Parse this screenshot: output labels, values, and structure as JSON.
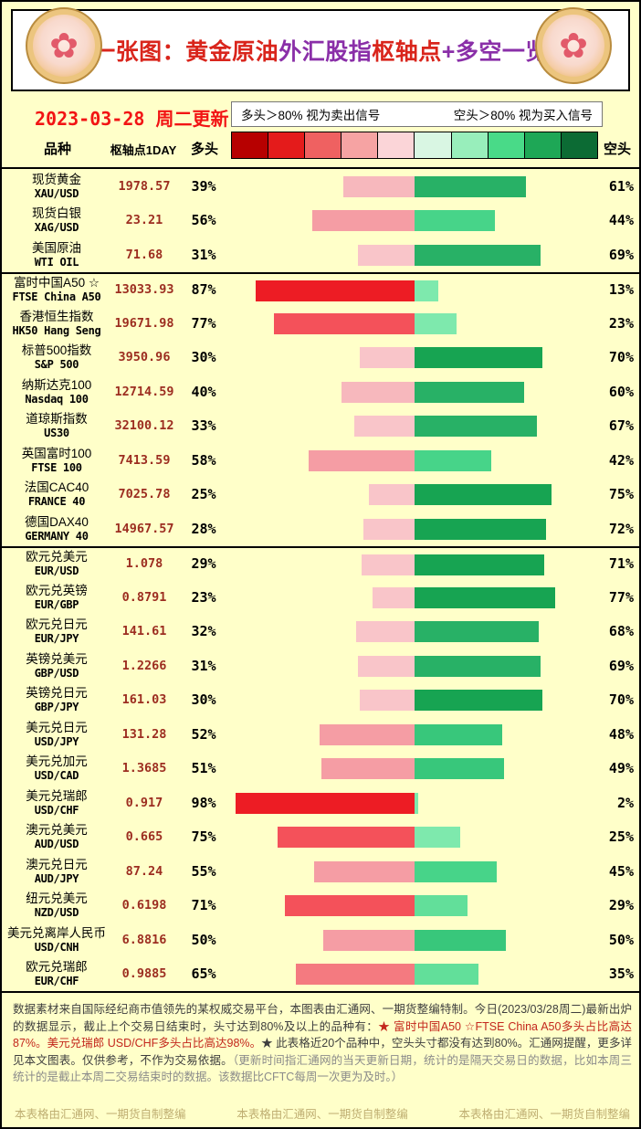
{
  "header": {
    "title_segments": [
      {
        "text": "一张图：黄金原油",
        "color": "#d9251c"
      },
      {
        "text": "外汇股指",
        "color": "#8a2fa8"
      },
      {
        "text": "枢轴点",
        "color": "#d9251c"
      },
      {
        "text": "+多空一览",
        "color": "#8a2fa8"
      }
    ],
    "date_label": "2023-03-28 周二更新",
    "coin_icon_glyph": "✿"
  },
  "legend": {
    "long_signal": "多头＞80% 视为卖出信号",
    "short_signal": "空头＞80% 视为买入信号",
    "scale_colors": [
      "#b70000",
      "#e41b1b",
      "#ef6161",
      "#f6a3a3",
      "#fbd5d8",
      "#d9f6e3",
      "#98eebb",
      "#49da88",
      "#1ea756",
      "#0c6b34"
    ]
  },
  "table": {
    "columns": {
      "variety": "品种",
      "pivot": "枢轴点1DAY",
      "long": "多头",
      "short": "空头"
    },
    "bar_colors": {
      "long": [
        [
          80,
          "#ed1c24"
        ],
        [
          70,
          "#f4515a"
        ],
        [
          60,
          "#f47a80"
        ],
        [
          45,
          "#f59da4"
        ],
        [
          35,
          "#f7b8bd"
        ],
        [
          0,
          "#f9c5c9"
        ]
      ],
      "short": [
        [
          70,
          "#17a452"
        ],
        [
          60,
          "#28b166"
        ],
        [
          48,
          "#38c77b"
        ],
        [
          40,
          "#47d489"
        ],
        [
          28,
          "#62df9a"
        ],
        [
          0,
          "#7ee9ad"
        ]
      ]
    },
    "rows": [
      {
        "name": "现货黄金",
        "symbol": "XAU/USD",
        "pivot": "1978.57",
        "long": 39,
        "short": 61,
        "group_start": false
      },
      {
        "name": "现货白银",
        "symbol": "XAG/USD",
        "pivot": "23.21",
        "long": 56,
        "short": 44,
        "group_start": false
      },
      {
        "name": "美国原油",
        "symbol": "WTI OIL",
        "pivot": "71.68",
        "long": 31,
        "short": 69,
        "group_start": false
      },
      {
        "name": "富时中国A50 ☆",
        "symbol": "FTSE China A50",
        "pivot": "13033.93",
        "long": 87,
        "short": 13,
        "group_start": true
      },
      {
        "name": "香港恒生指数",
        "symbol": "HK50 Hang Seng",
        "pivot": "19671.98",
        "long": 77,
        "short": 23,
        "group_start": false
      },
      {
        "name": "标普500指数",
        "symbol": "S&P 500",
        "pivot": "3950.96",
        "long": 30,
        "short": 70,
        "group_start": false
      },
      {
        "name": "纳斯达克100",
        "symbol": "Nasdaq 100",
        "pivot": "12714.59",
        "long": 40,
        "short": 60,
        "group_start": false
      },
      {
        "name": "道琼斯指数",
        "symbol": "US30",
        "pivot": "32100.12",
        "long": 33,
        "short": 67,
        "group_start": false
      },
      {
        "name": "英国富时100",
        "symbol": "FTSE 100",
        "pivot": "7413.59",
        "long": 58,
        "short": 42,
        "group_start": false
      },
      {
        "name": "法国CAC40",
        "symbol": "FRANCE 40",
        "pivot": "7025.78",
        "long": 25,
        "short": 75,
        "group_start": false
      },
      {
        "name": "德国DAX40",
        "symbol": "GERMANY 40",
        "pivot": "14967.57",
        "long": 28,
        "short": 72,
        "group_start": false
      },
      {
        "name": "欧元兑美元",
        "symbol": "EUR/USD",
        "pivot": "1.078",
        "long": 29,
        "short": 71,
        "group_start": true
      },
      {
        "name": "欧元兑英镑",
        "symbol": "EUR/GBP",
        "pivot": "0.8791",
        "long": 23,
        "short": 77,
        "group_start": false
      },
      {
        "name": "欧元兑日元",
        "symbol": "EUR/JPY",
        "pivot": "141.61",
        "long": 32,
        "short": 68,
        "group_start": false
      },
      {
        "name": "英镑兑美元",
        "symbol": "GBP/USD",
        "pivot": "1.2266",
        "long": 31,
        "short": 69,
        "group_start": false
      },
      {
        "name": "英镑兑日元",
        "symbol": "GBP/JPY",
        "pivot": "161.03",
        "long": 30,
        "short": 70,
        "group_start": false
      },
      {
        "name": "美元兑日元",
        "symbol": "USD/JPY",
        "pivot": "131.28",
        "long": 52,
        "short": 48,
        "group_start": false
      },
      {
        "name": "美元兑加元",
        "symbol": "USD/CAD",
        "pivot": "1.3685",
        "long": 51,
        "short": 49,
        "group_start": false
      },
      {
        "name": "美元兑瑞郎",
        "symbol": "USD/CHF",
        "pivot": "0.917",
        "long": 98,
        "short": 2,
        "group_start": false
      },
      {
        "name": "澳元兑美元",
        "symbol": "AUD/USD",
        "pivot": "0.665",
        "long": 75,
        "short": 25,
        "group_start": false
      },
      {
        "name": "澳元兑日元",
        "symbol": "AUD/JPY",
        "pivot": "87.24",
        "long": 55,
        "short": 45,
        "group_start": false
      },
      {
        "name": "纽元兑美元",
        "symbol": "NZD/USD",
        "pivot": "0.6198",
        "long": 71,
        "short": 29,
        "group_start": false
      },
      {
        "name": "美元兑离岸人民币",
        "symbol": "USD/CNH",
        "pivot": "6.8816",
        "long": 50,
        "short": 50,
        "group_start": false
      },
      {
        "name": "欧元兑瑞郎",
        "symbol": "EUR/CHF",
        "pivot": "0.9885",
        "long": 65,
        "short": 35,
        "group_start": false
      }
    ]
  },
  "chart_data": {
    "type": "bar",
    "orientation": "horizontal",
    "title": "一张图：黄金原油外汇股指枢轴点+多空一览",
    "subtitle": "2023-03-28 周二更新",
    "legend": [
      "多头＞80% 视为卖出信号",
      "空头＞80% 视为买入信号"
    ],
    "categories": [
      "XAU/USD",
      "XAG/USD",
      "WTI OIL",
      "FTSE China A50",
      "HK50 Hang Seng",
      "S&P 500",
      "Nasdaq 100",
      "US30",
      "FTSE 100",
      "FRANCE 40",
      "GERMANY 40",
      "EUR/USD",
      "EUR/GBP",
      "EUR/JPY",
      "GBP/USD",
      "GBP/JPY",
      "USD/JPY",
      "USD/CAD",
      "USD/CHF",
      "AUD/USD",
      "AUD/JPY",
      "NZD/USD",
      "USD/CNH",
      "EUR/CHF"
    ],
    "series": [
      {
        "name": "多头%",
        "values": [
          39,
          56,
          31,
          87,
          77,
          30,
          40,
          33,
          58,
          25,
          28,
          29,
          23,
          32,
          31,
          30,
          52,
          51,
          98,
          75,
          55,
          71,
          50,
          65
        ]
      },
      {
        "name": "空头%",
        "values": [
          61,
          44,
          69,
          13,
          23,
          70,
          60,
          67,
          42,
          75,
          72,
          71,
          77,
          68,
          69,
          70,
          48,
          49,
          2,
          25,
          45,
          29,
          50,
          35
        ]
      },
      {
        "name": "枢轴点1DAY",
        "values": [
          1978.57,
          23.21,
          71.68,
          13033.93,
          19671.98,
          3950.96,
          12714.59,
          32100.12,
          7413.59,
          7025.78,
          14967.57,
          1.078,
          0.8791,
          141.61,
          1.2266,
          161.03,
          131.28,
          1.3685,
          0.917,
          0.665,
          87.24,
          0.6198,
          6.8816,
          0.9885
        ]
      }
    ],
    "xlim": [
      0,
      100
    ]
  },
  "footer": {
    "note_segments": [
      {
        "text": "数据素材来自国际经纪商市值领先的某权威交易平台，本图表由汇通网、一期货整编特制。今日(2023/03/28周二)最新出炉的数据显示，截止上个交易日结束时，头寸达到80%及以上的品种有：",
        "color": "#3e3e3e"
      },
      {
        "text": "★ 富时中国A50 ☆FTSE China A50多头占比高达87%。美元兑瑞郎 USD/CHF多头占比高达98%。",
        "color": "#c3261c"
      },
      {
        "text": "★ 此表格近20个品种中，空头头寸都没有达到80%。汇通网提醒，更多详见本文图表。仅供参考，不作为交易依据。",
        "color": "#3e3e3e"
      },
      {
        "text": "（更新时间指汇通网的当天更新日期，统计的是隔天交易日的数据，比如本周三统计的是截止本周二交易结束时的数据。该数据比CFTC每周一次更为及时。）",
        "color": "#8b8b8b"
      }
    ],
    "watermark": "本表格由汇通网、一期货自制整编"
  }
}
